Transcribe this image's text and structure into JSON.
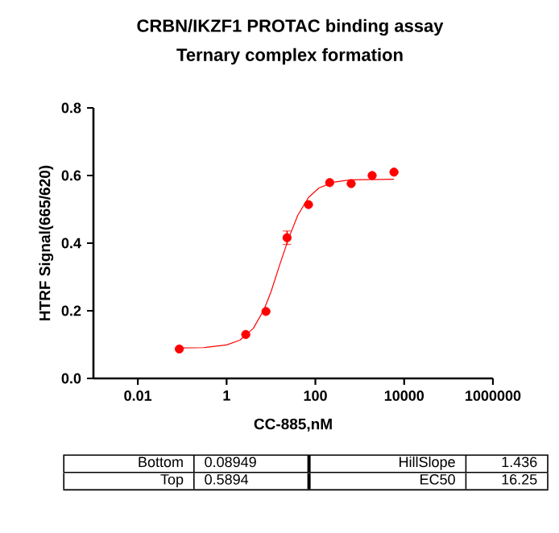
{
  "chart_data": {
    "type": "scatter",
    "title": "CRBN/IKZF1 PROTAC binding assay",
    "subtitle": "Ternary complex formation",
    "xlabel": "CC-885,nM",
    "ylabel": "HTRF Signal(665/620)",
    "log": "x",
    "xlim": [
      0.001,
      1000000
    ],
    "xticks": [
      0.01,
      1,
      100,
      10000,
      1000000
    ],
    "ylim": [
      0,
      0.8
    ],
    "yticks": [
      {
        "value": 0,
        "label": "0.0"
      },
      0.2,
      0.4,
      0.6,
      0.8
    ],
    "series": [
      {
        "marker": "circle",
        "color": "#ff0000",
        "x": [
          0.086,
          2.7,
          7.7,
          23,
          70,
          210,
          640,
          1900,
          5900
        ],
        "values": [
          0.087,
          0.13,
          0.198,
          0.416,
          0.514,
          0.579,
          0.576,
          0.6,
          0.61
        ],
        "errors": [
          null,
          null,
          null,
          0.02,
          null,
          null,
          null,
          null,
          null
        ]
      },
      {
        "type": "line",
        "marker": "none",
        "color": "#ff0000",
        "x": [
          0.086,
          0.3,
          1,
          2,
          4,
          7,
          10,
          16,
          25,
          40,
          70,
          120,
          250,
          600,
          5900
        ],
        "values": [
          0.09,
          0.091,
          0.099,
          0.113,
          0.148,
          0.204,
          0.256,
          0.339,
          0.414,
          0.482,
          0.535,
          0.563,
          0.58,
          0.587,
          0.589
        ]
      }
    ],
    "annotations": [
      "Bottom",
      "0.08949",
      "HillSlope",
      "1.436",
      "Top",
      "0.5894",
      "EC50",
      "16.25"
    ]
  }
}
